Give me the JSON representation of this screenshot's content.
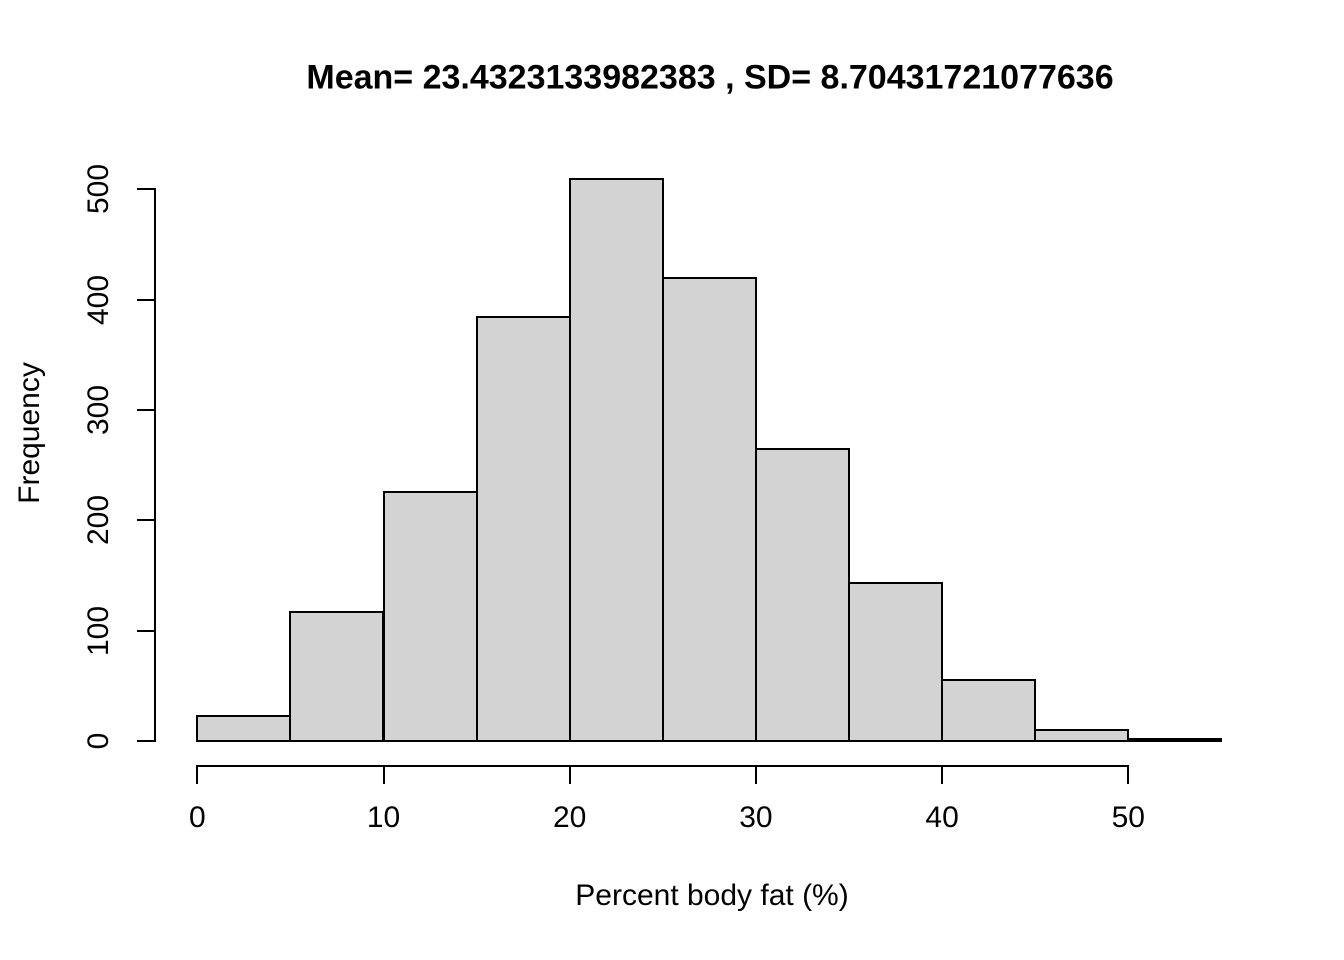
{
  "figure": {
    "background": "#ffffff",
    "text_color": "#000000"
  },
  "chart_data": {
    "type": "bar",
    "subtype": "histogram",
    "title": "Mean= 23.4323133982383 , SD= 8.70431721077636",
    "xlabel": "Percent body fat (%)",
    "ylabel": "Frequency",
    "bin_breaks": [
      0,
      5,
      10,
      15,
      20,
      25,
      30,
      35,
      40,
      45,
      50,
      55
    ],
    "counts": [
      23,
      117,
      226,
      384,
      509,
      420,
      265,
      143,
      55,
      10,
      2
    ],
    "x_ticks": [
      0,
      10,
      20,
      30,
      40,
      50
    ],
    "y_ticks": [
      0,
      100,
      200,
      300,
      400,
      500
    ],
    "xlim": [
      0,
      55
    ],
    "ylim": [
      0,
      500
    ],
    "grid": false,
    "legend": "none",
    "bar_fill": "#d3d3d3",
    "bar_border": "#000000"
  }
}
